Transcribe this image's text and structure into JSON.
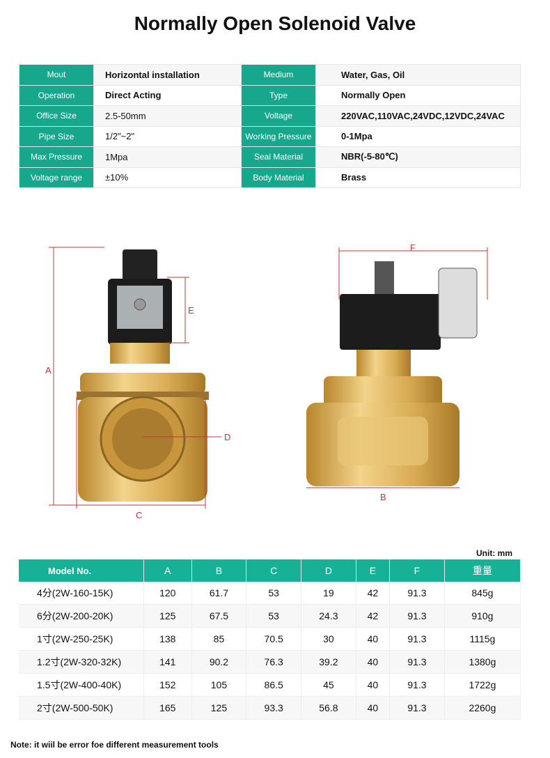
{
  "title": "Normally Open Solenoid Valve",
  "spec_rows": [
    {
      "k1": "Mout",
      "v1": "Horizontal installation",
      "k2": "Medium",
      "v2": "Water, Gas,  Oil"
    },
    {
      "k1": "Operation",
      "v1": "Direct Acting",
      "k2": "Type",
      "v2": "Normally Open"
    },
    {
      "k1": "Office Size",
      "v1": "2.5-50mm",
      "k2": "Voltage",
      "v2": "220VAC,110VAC,24VDC,12VDC,24VAC"
    },
    {
      "k1": "Pipe Size",
      "v1": "1/2\"~2\"",
      "k2": "Working Pressure",
      "v2": "0-1Mpa"
    },
    {
      "k1": "Max Pressure",
      "v1": "1Mpa",
      "k2": "Seal Material",
      "v2": "NBR(-5-80℃)"
    },
    {
      "k1": "Voltage range",
      "v1": "±10%",
      "k2": "Body Material",
      "v2": "Brass"
    }
  ],
  "dimension_labels": {
    "A": "A",
    "B": "B",
    "C": "C",
    "D": "D",
    "E": "E",
    "F": "F"
  },
  "unit": "Unit: mm",
  "dims_table": {
    "headers": [
      "Model No.",
      "A",
      "B",
      "C",
      "D",
      "E",
      "F",
      "重量"
    ],
    "rows": [
      [
        "4分(2W-160-15K)",
        "120",
        "61.7",
        "53",
        "19",
        "42",
        "91.3",
        "845g"
      ],
      [
        "6分(2W-200-20K)",
        "125",
        "67.5",
        "53",
        "24.3",
        "42",
        "91.3",
        "910g"
      ],
      [
        "1寸(2W-250-25K)",
        "138",
        "85",
        "70.5",
        "30",
        "40",
        "91.3",
        "1115g"
      ],
      [
        "1.2寸(2W-320-32K)",
        "141",
        "90.2",
        "76.3",
        "39.2",
        "40",
        "91.3",
        "1380g"
      ],
      [
        "1.5寸(2W-400-40K)",
        "152",
        "105",
        "86.5",
        "45",
        "40",
        "91.3",
        "1722g"
      ],
      [
        "2寸(2W-500-50K)",
        "165",
        "125",
        "93.3",
        "56.8",
        "40",
        "91.3",
        "2260g"
      ]
    ]
  },
  "note": "Note: it wiil be error foe different measurement tools",
  "colors": {
    "accent": "#17a78d",
    "dimension_line": "#cc3333",
    "brass": "#d6ad55"
  }
}
